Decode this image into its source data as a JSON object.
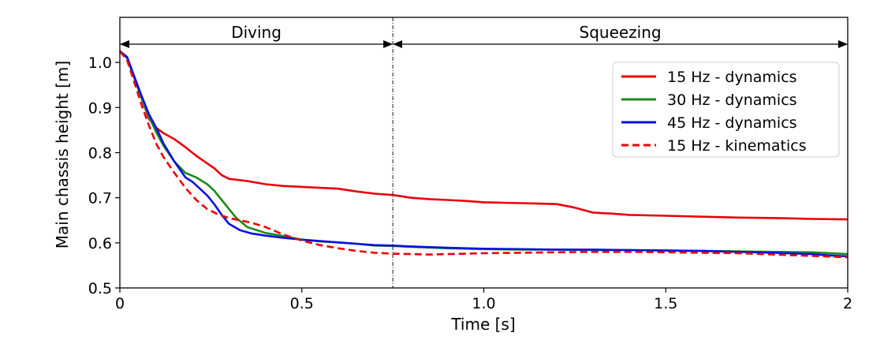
{
  "chart_data": {
    "type": "line",
    "title": "",
    "xlabel": "Time [s]",
    "ylabel": "Main chassis height [m]",
    "xlim": [
      0,
      2
    ],
    "ylim": [
      0.5,
      1.1
    ],
    "xticks": [
      0,
      0.5,
      1.0,
      1.5,
      2.0
    ],
    "xtick_labels": [
      "0",
      "0.5",
      "1.0",
      "1.5",
      "2"
    ],
    "yticks": [
      0.5,
      0.6,
      0.7,
      0.8,
      0.9,
      1.0
    ],
    "ytick_labels": [
      "0.5",
      "0.6",
      "0.7",
      "0.8",
      "0.9",
      "1.0"
    ],
    "grid": false,
    "legend_position": "top-right",
    "phase_divider_x": 0.75,
    "phases": [
      {
        "label": "Diving",
        "start": 0,
        "end": 0.75
      },
      {
        "label": "Squeezing",
        "start": 0.75,
        "end": 2.0
      }
    ],
    "series": [
      {
        "name": "15 Hz - dynamics",
        "color": "#e8000b",
        "style": "solid",
        "x": [
          0,
          0.02,
          0.04,
          0.06,
          0.08,
          0.1,
          0.12,
          0.15,
          0.18,
          0.21,
          0.24,
          0.26,
          0.28,
          0.3,
          0.35,
          0.4,
          0.45,
          0.5,
          0.55,
          0.6,
          0.65,
          0.7,
          0.75,
          0.8,
          0.85,
          0.9,
          0.95,
          1.0,
          1.05,
          1.1,
          1.15,
          1.2,
          1.25,
          1.3,
          1.35,
          1.4,
          1.5,
          1.6,
          1.7,
          1.8,
          1.9,
          2.0
        ],
        "values": [
          1.025,
          1.01,
          0.965,
          0.92,
          0.875,
          0.855,
          0.843,
          0.83,
          0.812,
          0.793,
          0.776,
          0.765,
          0.75,
          0.742,
          0.737,
          0.73,
          0.726,
          0.724,
          0.722,
          0.72,
          0.714,
          0.709,
          0.706,
          0.7,
          0.697,
          0.695,
          0.693,
          0.69,
          0.689,
          0.688,
          0.687,
          0.686,
          0.678,
          0.667,
          0.665,
          0.662,
          0.66,
          0.658,
          0.656,
          0.655,
          0.653,
          0.652
        ]
      },
      {
        "name": "30 Hz - dynamics",
        "color": "#1a8a1a",
        "style": "solid",
        "x": [
          0,
          0.02,
          0.04,
          0.06,
          0.08,
          0.1,
          0.12,
          0.15,
          0.18,
          0.21,
          0.24,
          0.26,
          0.28,
          0.3,
          0.32,
          0.35,
          0.4,
          0.45,
          0.5,
          0.55,
          0.6,
          0.65,
          0.7,
          0.75,
          0.8,
          0.9,
          1.0,
          1.1,
          1.2,
          1.3,
          1.4,
          1.5,
          1.6,
          1.7,
          1.8,
          1.9,
          2.0
        ],
        "values": [
          1.025,
          1.01,
          0.965,
          0.92,
          0.88,
          0.845,
          0.815,
          0.78,
          0.755,
          0.745,
          0.73,
          0.715,
          0.695,
          0.675,
          0.655,
          0.635,
          0.622,
          0.615,
          0.607,
          0.603,
          0.601,
          0.598,
          0.594,
          0.593,
          0.591,
          0.588,
          0.586,
          0.585,
          0.585,
          0.584,
          0.584,
          0.583,
          0.582,
          0.581,
          0.58,
          0.579,
          0.575
        ]
      },
      {
        "name": "45 Hz - dynamics",
        "color": "#0a10e0",
        "style": "solid",
        "x": [
          0,
          0.02,
          0.04,
          0.06,
          0.08,
          0.1,
          0.12,
          0.15,
          0.18,
          0.2,
          0.22,
          0.24,
          0.26,
          0.28,
          0.3,
          0.33,
          0.36,
          0.4,
          0.45,
          0.5,
          0.55,
          0.6,
          0.65,
          0.7,
          0.75,
          0.8,
          0.9,
          1.0,
          1.1,
          1.2,
          1.3,
          1.4,
          1.5,
          1.6,
          1.7,
          1.8,
          1.9,
          1.95,
          2.0
        ],
        "values": [
          1.025,
          1.012,
          0.968,
          0.925,
          0.885,
          0.855,
          0.82,
          0.78,
          0.745,
          0.735,
          0.72,
          0.705,
          0.685,
          0.662,
          0.642,
          0.628,
          0.621,
          0.616,
          0.611,
          0.607,
          0.604,
          0.601,
          0.598,
          0.595,
          0.594,
          0.592,
          0.589,
          0.587,
          0.586,
          0.585,
          0.585,
          0.584,
          0.583,
          0.582,
          0.58,
          0.578,
          0.575,
          0.572,
          0.57
        ]
      },
      {
        "name": "15 Hz - kinematics",
        "color": "#e8000b",
        "style": "dashed",
        "x": [
          0,
          0.02,
          0.04,
          0.06,
          0.08,
          0.1,
          0.12,
          0.15,
          0.18,
          0.21,
          0.24,
          0.27,
          0.3,
          0.33,
          0.36,
          0.4,
          0.45,
          0.5,
          0.55,
          0.6,
          0.65,
          0.7,
          0.75,
          0.8,
          0.85,
          0.9,
          0.95,
          1.0,
          1.1,
          1.2,
          1.3,
          1.4,
          1.5,
          1.6,
          1.7,
          1.8,
          1.9,
          2.0
        ],
        "values": [
          1.025,
          1.005,
          0.955,
          0.905,
          0.86,
          0.82,
          0.79,
          0.755,
          0.722,
          0.695,
          0.675,
          0.663,
          0.655,
          0.65,
          0.645,
          0.635,
          0.618,
          0.605,
          0.595,
          0.588,
          0.582,
          0.578,
          0.576,
          0.575,
          0.574,
          0.575,
          0.576,
          0.577,
          0.578,
          0.579,
          0.58,
          0.58,
          0.579,
          0.578,
          0.577,
          0.574,
          0.571,
          0.568
        ]
      }
    ]
  }
}
